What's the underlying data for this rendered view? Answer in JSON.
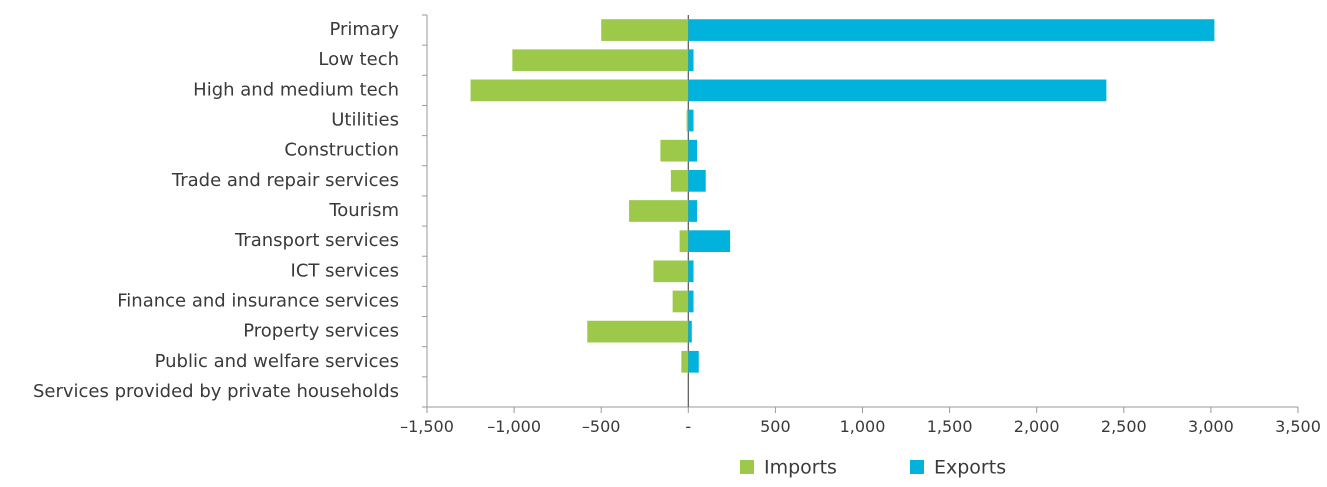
{
  "chart_data": {
    "type": "bar",
    "orientation": "horizontal",
    "categories": [
      "Primary",
      "Low tech",
      "High and medium tech",
      "Utilities",
      "Construction",
      "Trade and repair services",
      "Tourism",
      "Transport services",
      "ICT services",
      "Finance and insurance services",
      "Property services",
      "Public and welfare services",
      "Services provided by private households"
    ],
    "series": [
      {
        "name": "Imports",
        "color": "#9dc94a",
        "values": [
          -500,
          -1010,
          -1250,
          -10,
          -160,
          -100,
          -340,
          -50,
          -200,
          -90,
          -580,
          -40,
          0
        ]
      },
      {
        "name": "Exports",
        "color": "#00b2dc",
        "values": [
          3020,
          30,
          2400,
          30,
          50,
          100,
          50,
          240,
          30,
          30,
          20,
          60,
          0
        ]
      }
    ],
    "xlim": [
      -1500,
      3500
    ],
    "xticks": [
      -1500,
      -1000,
      -500,
      0,
      500,
      1000,
      1500,
      2000,
      2500,
      3000,
      3500
    ],
    "xtick_labels": [
      "–1,500",
      "–1,000",
      "–500",
      "-",
      "500",
      "1,000",
      "1,500",
      "2,000",
      "2,500",
      "3,000",
      "3,500"
    ],
    "title": "",
    "xlabel": "",
    "ylabel": "",
    "grid": false,
    "legend_position": "bottom-center",
    "axis_color": "#9a9a9a",
    "zero_line_color": "#555555"
  }
}
